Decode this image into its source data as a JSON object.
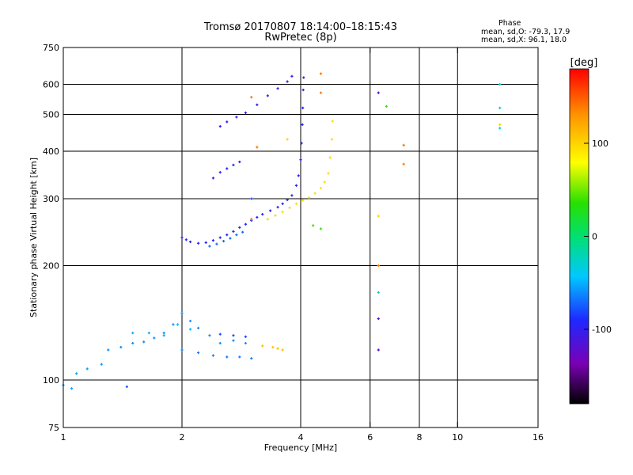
{
  "header": {
    "title": "Tromsø 20170807 18:14:00–18:15:43",
    "subtitle": "RwPretec (8p)",
    "phase_title": "Phase",
    "phase_line1": "mean, sd,O: -79.3, 17.9",
    "phase_line2": "mean, sd,X:  96.1, 18.0"
  },
  "chart_data": {
    "type": "scatter",
    "xlabel": "Frequency [MHz]",
    "ylabel": "Stationary phase Virtual Height [km]",
    "xscale": "log",
    "yscale": "log",
    "xlim": [
      1,
      16
    ],
    "ylim": [
      75,
      750
    ],
    "x_ticks": [
      1,
      2,
      4,
      6,
      8,
      10,
      16
    ],
    "y_ticks": [
      75,
      100,
      200,
      300,
      400,
      500,
      600,
      750
    ],
    "grid_x": [
      2,
      4,
      6,
      8,
      10
    ],
    "grid_y": [
      100,
      200,
      300,
      400,
      500,
      600
    ],
    "colorbar": {
      "label": "[deg]",
      "range": [
        -180,
        180
      ],
      "ticks": [
        -100,
        0,
        100
      ],
      "colormap": [
        "#000000",
        "#7a00b4",
        "#1e28ff",
        "#00c8ff",
        "#00e070",
        "#28e000",
        "#ffff00",
        "#ff9600",
        "#ff0000"
      ]
    },
    "series": [
      {
        "points": [
          [
            2.0,
            237
          ],
          [
            2.05,
            234
          ],
          [
            2.1,
            231
          ],
          [
            2.2,
            229
          ],
          [
            2.3,
            230
          ],
          [
            2.4,
            233
          ],
          [
            2.5,
            237
          ],
          [
            2.6,
            241
          ],
          [
            2.7,
            246
          ],
          [
            2.8,
            252
          ],
          [
            2.9,
            257
          ],
          [
            3.0,
            263
          ],
          [
            3.1,
            268
          ],
          [
            3.2,
            273
          ],
          [
            3.35,
            279
          ],
          [
            3.5,
            285
          ],
          [
            3.6,
            291
          ],
          [
            3.7,
            298
          ],
          [
            3.8,
            306
          ],
          [
            3.9,
            325
          ],
          [
            3.95,
            345
          ],
          [
            4.0,
            380
          ],
          [
            4.02,
            420
          ],
          [
            4.04,
            470
          ],
          [
            4.05,
            520
          ],
          [
            4.06,
            580
          ],
          [
            4.07,
            625
          ]
        ],
        "phase": -95
      },
      {
        "points": [
          [
            2.35,
            225
          ],
          [
            2.45,
            228
          ],
          [
            2.55,
            232
          ],
          [
            2.65,
            236
          ],
          [
            2.75,
            241
          ],
          [
            2.85,
            245
          ]
        ],
        "phase": -70
      },
      {
        "points": [
          [
            3.3,
            265
          ],
          [
            3.45,
            271
          ],
          [
            3.6,
            277
          ],
          [
            3.75,
            284
          ],
          [
            3.9,
            291
          ],
          [
            4.05,
            297
          ],
          [
            4.2,
            302
          ],
          [
            4.35,
            310
          ],
          [
            4.5,
            320
          ],
          [
            4.6,
            332
          ],
          [
            4.7,
            350
          ],
          [
            4.75,
            385
          ],
          [
            4.8,
            430
          ],
          [
            4.82,
            480
          ]
        ],
        "phase": 95
      },
      {
        "points": [
          [
            2.4,
            340
          ],
          [
            2.5,
            352
          ],
          [
            2.6,
            360
          ],
          [
            2.7,
            368
          ],
          [
            2.8,
            375
          ]
        ],
        "phase": -95
      },
      {
        "points": [
          [
            2.5,
            465
          ],
          [
            2.6,
            478
          ],
          [
            2.75,
            492
          ],
          [
            2.9,
            505
          ],
          [
            3.1,
            530
          ],
          [
            3.3,
            560
          ],
          [
            3.5,
            585
          ],
          [
            3.7,
            610
          ],
          [
            3.8,
            630
          ]
        ],
        "phase": -100
      },
      {
        "points": [
          [
            1.0,
            97
          ],
          [
            1.05,
            95
          ],
          [
            1.08,
            104
          ],
          [
            1.15,
            107
          ],
          [
            1.25,
            110
          ]
        ],
        "phase": -55
      },
      {
        "points": [
          [
            1.3,
            120
          ],
          [
            1.4,
            122
          ],
          [
            1.5,
            125
          ],
          [
            1.6,
            126
          ],
          [
            1.7,
            129
          ],
          [
            1.8,
            133
          ],
          [
            1.9,
            140
          ],
          [
            2.0,
            150
          ],
          [
            2.1,
            143
          ],
          [
            2.2,
            137
          ],
          [
            2.35,
            131
          ],
          [
            2.5,
            125
          ],
          [
            2.7,
            127
          ],
          [
            2.9,
            125
          ]
        ],
        "phase": -60
      },
      {
        "points": [
          [
            1.5,
            133
          ],
          [
            1.65,
            133
          ],
          [
            1.8,
            131
          ],
          [
            1.95,
            140
          ],
          [
            2.1,
            136
          ]
        ],
        "phase": -50
      },
      {
        "points": [
          [
            2.0,
            120
          ],
          [
            2.2,
            118
          ],
          [
            2.4,
            116
          ],
          [
            2.6,
            115
          ],
          [
            2.8,
            115
          ],
          [
            3.0,
            114
          ]
        ],
        "phase": -65
      },
      {
        "points": [
          [
            3.2,
            123
          ],
          [
            3.4,
            122
          ],
          [
            3.5,
            121
          ],
          [
            3.6,
            120
          ]
        ],
        "phase": 110
      },
      {
        "points": [
          [
            2.5,
            132
          ],
          [
            2.7,
            131
          ],
          [
            2.9,
            130
          ]
        ],
        "phase": -80
      },
      {
        "points": [
          [
            6.3,
            570
          ],
          [
            6.3,
            145
          ],
          [
            6.3,
            120
          ]
        ],
        "phase": -120
      },
      {
        "points": [
          [
            6.3,
            170
          ],
          [
            12.8,
            600
          ],
          [
            12.8,
            520
          ],
          [
            12.8,
            460
          ]
        ],
        "phase": -30
      },
      {
        "points": [
          [
            6.6,
            525
          ],
          [
            4.3,
            255
          ],
          [
            4.5,
            250
          ]
        ],
        "phase": 40
      },
      {
        "points": [
          [
            3.0,
            555
          ],
          [
            3.1,
            410
          ],
          [
            4.5,
            640
          ],
          [
            4.5,
            570
          ],
          [
            6.3,
            200
          ],
          [
            7.3,
            415
          ],
          [
            7.3,
            370
          ],
          [
            3.0,
            265
          ]
        ],
        "phase": 140
      },
      {
        "points": [
          [
            6.3,
            270
          ],
          [
            12.8,
            470
          ],
          [
            3.7,
            430
          ]
        ],
        "phase": 100
      },
      {
        "points": [
          [
            1.45,
            96
          ],
          [
            3.0,
            300
          ]
        ],
        "phase": -75
      }
    ]
  }
}
